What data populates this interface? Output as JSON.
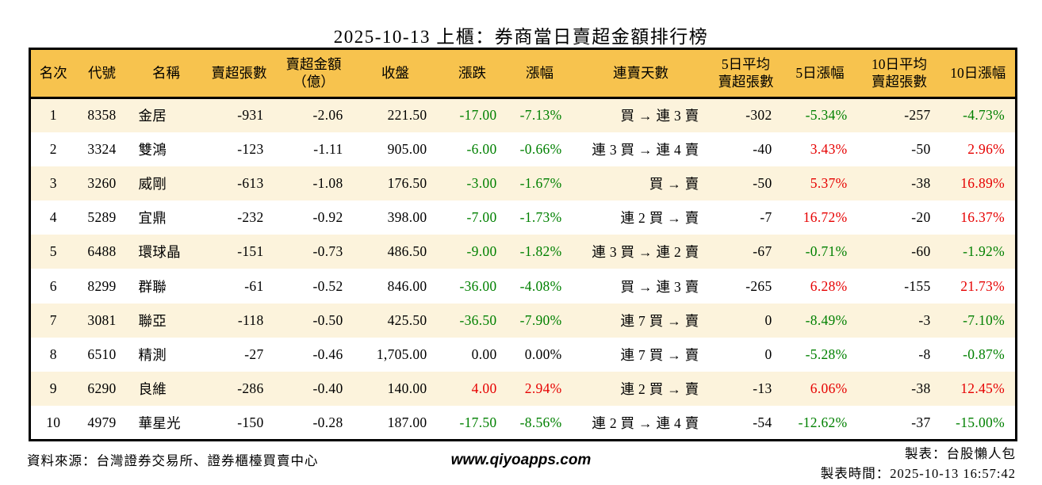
{
  "title": "2025-10-13 上櫃：券商當日賣超金額排行榜",
  "colors": {
    "header_bg": "#F7C34E",
    "row_stripe": "#FCF3DC",
    "positive_red": "#E60000",
    "negative_green": "#008000"
  },
  "table": {
    "headers": [
      "名次",
      "代號",
      "名稱",
      "賣超張數",
      "賣超金額\n（億）",
      "收盤",
      "漲跌",
      "漲幅",
      "連賣天數",
      "5日平均\n賣超張數",
      "5日漲幅",
      "10日平均\n賣超張數",
      "10日漲幅"
    ],
    "rows": [
      {
        "rank": "1",
        "code": "8358",
        "name": "金居",
        "vol": "-931",
        "amt": "-2.06",
        "close": "221.50",
        "chg": "-17.00",
        "chg_pct": "-7.13%",
        "streak": "買 → 連 3 賣",
        "avg5": "-302",
        "pct5": "-5.34%",
        "avg10": "-257",
        "pct10": "-4.73%"
      },
      {
        "rank": "2",
        "code": "3324",
        "name": "雙鴻",
        "vol": "-123",
        "amt": "-1.11",
        "close": "905.00",
        "chg": "-6.00",
        "chg_pct": "-0.66%",
        "streak": "連 3 買 → 連 4 賣",
        "avg5": "-40",
        "pct5": "3.43%",
        "avg10": "-50",
        "pct10": "2.96%"
      },
      {
        "rank": "3",
        "code": "3260",
        "name": "威剛",
        "vol": "-613",
        "amt": "-1.08",
        "close": "176.50",
        "chg": "-3.00",
        "chg_pct": "-1.67%",
        "streak": "買 → 賣",
        "avg5": "-50",
        "pct5": "5.37%",
        "avg10": "-38",
        "pct10": "16.89%"
      },
      {
        "rank": "4",
        "code": "5289",
        "name": "宜鼎",
        "vol": "-232",
        "amt": "-0.92",
        "close": "398.00",
        "chg": "-7.00",
        "chg_pct": "-1.73%",
        "streak": "連 2 買 → 賣",
        "avg5": "-7",
        "pct5": "16.72%",
        "avg10": "-20",
        "pct10": "16.37%"
      },
      {
        "rank": "5",
        "code": "6488",
        "name": "環球晶",
        "vol": "-151",
        "amt": "-0.73",
        "close": "486.50",
        "chg": "-9.00",
        "chg_pct": "-1.82%",
        "streak": "連 3 買 → 連 2 賣",
        "avg5": "-67",
        "pct5": "-0.71%",
        "avg10": "-60",
        "pct10": "-1.92%"
      },
      {
        "rank": "6",
        "code": "8299",
        "name": "群聯",
        "vol": "-61",
        "amt": "-0.52",
        "close": "846.00",
        "chg": "-36.00",
        "chg_pct": "-4.08%",
        "streak": "買 → 連 3 賣",
        "avg5": "-265",
        "pct5": "6.28%",
        "avg10": "-155",
        "pct10": "21.73%"
      },
      {
        "rank": "7",
        "code": "3081",
        "name": "聯亞",
        "vol": "-118",
        "amt": "-0.50",
        "close": "425.50",
        "chg": "-36.50",
        "chg_pct": "-7.90%",
        "streak": "連 7 買 → 賣",
        "avg5": "0",
        "pct5": "-8.49%",
        "avg10": "-3",
        "pct10": "-7.10%"
      },
      {
        "rank": "8",
        "code": "6510",
        "name": "精測",
        "vol": "-27",
        "amt": "-0.46",
        "close": "1,705.00",
        "chg": "0.00",
        "chg_pct": "0.00%",
        "streak": "連 7 買 → 賣",
        "avg5": "0",
        "pct5": "-5.28%",
        "avg10": "-8",
        "pct10": "-0.87%"
      },
      {
        "rank": "9",
        "code": "6290",
        "name": "良維",
        "vol": "-286",
        "amt": "-0.40",
        "close": "140.00",
        "chg": "4.00",
        "chg_pct": "2.94%",
        "streak": "連 2 買 → 賣",
        "avg5": "-13",
        "pct5": "6.06%",
        "avg10": "-38",
        "pct10": "12.45%"
      },
      {
        "rank": "10",
        "code": "4979",
        "name": "華星光",
        "vol": "-150",
        "amt": "-0.28",
        "close": "187.00",
        "chg": "-17.50",
        "chg_pct": "-8.56%",
        "streak": "連 2 買 → 連 4 賣",
        "avg5": "-54",
        "pct5": "-12.62%",
        "avg10": "-37",
        "pct10": "-15.00%"
      }
    ]
  },
  "footer": {
    "source": "資料來源：台灣證券交易所、證券櫃檯買賣中心",
    "website": "www.qiyoapps.com",
    "maker": "製表：台股懶人包",
    "made_time": "製表時間：2025-10-13 16:57:42"
  }
}
